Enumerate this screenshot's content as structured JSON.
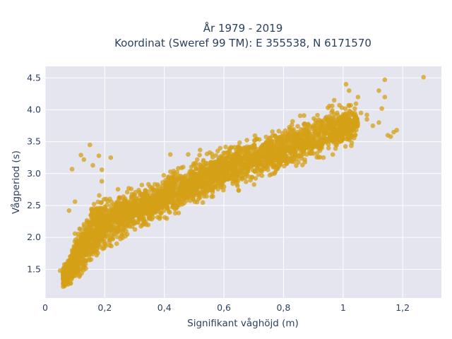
{
  "chart_data": {
    "type": "scatter",
    "title_line1": "År 1979 - 2019",
    "title_line2": "Koordinat (Sweref 99 TM): E 355538, N 6171570",
    "xlabel": "Signifikant våghöjd (m)",
    "ylabel": "Vågperiod (s)",
    "xlim": [
      0,
      1.33
    ],
    "ylim": [
      1.05,
      4.68
    ],
    "x_ticks": [
      0,
      0.2,
      0.4,
      0.6,
      0.8,
      1.0,
      1.2
    ],
    "x_tick_labels": [
      "0",
      "0,2",
      "0,4",
      "0,6",
      "0,8",
      "1",
      "1,2"
    ],
    "y_ticks": [
      1.5,
      2.0,
      2.5,
      3.0,
      3.5,
      4.0,
      4.5
    ],
    "y_tick_labels": [
      "1.5",
      "2.0",
      "2.5",
      "3.0",
      "3.5",
      "4.0",
      "4.5"
    ],
    "grid": true,
    "colors": {
      "marker": "#d4a017",
      "plot_background": "#e5e5ef",
      "grid": "#ffffff",
      "text": "#2a3f5f"
    },
    "dense_band": [
      [
        0.06,
        1.22,
        1.55
      ],
      [
        0.08,
        1.22,
        1.75
      ],
      [
        0.1,
        1.25,
        2.05
      ],
      [
        0.12,
        1.25,
        2.3
      ],
      [
        0.14,
        1.35,
        2.5
      ],
      [
        0.16,
        1.5,
        2.65
      ],
      [
        0.18,
        1.62,
        2.7
      ],
      [
        0.2,
        1.72,
        2.72
      ],
      [
        0.25,
        1.85,
        2.8
      ],
      [
        0.3,
        1.98,
        2.88
      ],
      [
        0.35,
        2.1,
        2.96
      ],
      [
        0.4,
        2.22,
        3.06
      ],
      [
        0.45,
        2.34,
        3.16
      ],
      [
        0.5,
        2.44,
        3.28
      ],
      [
        0.55,
        2.54,
        3.4
      ],
      [
        0.6,
        2.62,
        3.52
      ],
      [
        0.65,
        2.7,
        3.58
      ],
      [
        0.7,
        2.78,
        3.66
      ],
      [
        0.75,
        2.86,
        3.72
      ],
      [
        0.8,
        2.94,
        3.8
      ],
      [
        0.85,
        3.02,
        3.92
      ],
      [
        0.9,
        3.1,
        4.02
      ],
      [
        0.95,
        3.22,
        4.1
      ],
      [
        1.0,
        3.3,
        4.18
      ],
      [
        1.05,
        3.45,
        4.2
      ]
    ],
    "notable_points": [
      [
        0.09,
        3.07
      ],
      [
        0.1,
        2.56
      ],
      [
        0.12,
        3.29
      ],
      [
        0.13,
        3.22
      ],
      [
        0.15,
        3.45
      ],
      [
        0.16,
        3.13
      ],
      [
        0.18,
        3.28
      ],
      [
        0.19,
        2.88
      ],
      [
        0.22,
        3.25
      ],
      [
        0.19,
        3.06
      ],
      [
        0.1,
        2.06
      ],
      [
        0.08,
        2.42
      ],
      [
        0.42,
        3.3
      ],
      [
        0.48,
        3.3
      ],
      [
        0.52,
        3.37
      ],
      [
        0.97,
        4.15
      ],
      [
        1.01,
        4.4
      ],
      [
        1.02,
        4.3
      ],
      [
        1.05,
        4.2
      ],
      [
        1.06,
        3.95
      ],
      [
        1.08,
        3.92
      ],
      [
        1.1,
        3.75
      ],
      [
        1.12,
        3.8
      ],
      [
        1.13,
        4.02
      ],
      [
        1.14,
        4.2
      ],
      [
        1.15,
        3.6
      ],
      [
        1.12,
        4.3
      ],
      [
        1.14,
        4.47
      ],
      [
        1.16,
        3.58
      ],
      [
        1.17,
        3.65
      ],
      [
        1.18,
        3.68
      ],
      [
        1.27,
        4.51
      ],
      [
        1.04,
        3.6
      ],
      [
        1.08,
        3.85
      ],
      [
        0.98,
        3.95
      ],
      [
        1.02,
        3.68
      ],
      [
        0.05,
        1.48
      ],
      [
        0.06,
        1.23
      ],
      [
        0.07,
        1.27
      ]
    ]
  }
}
